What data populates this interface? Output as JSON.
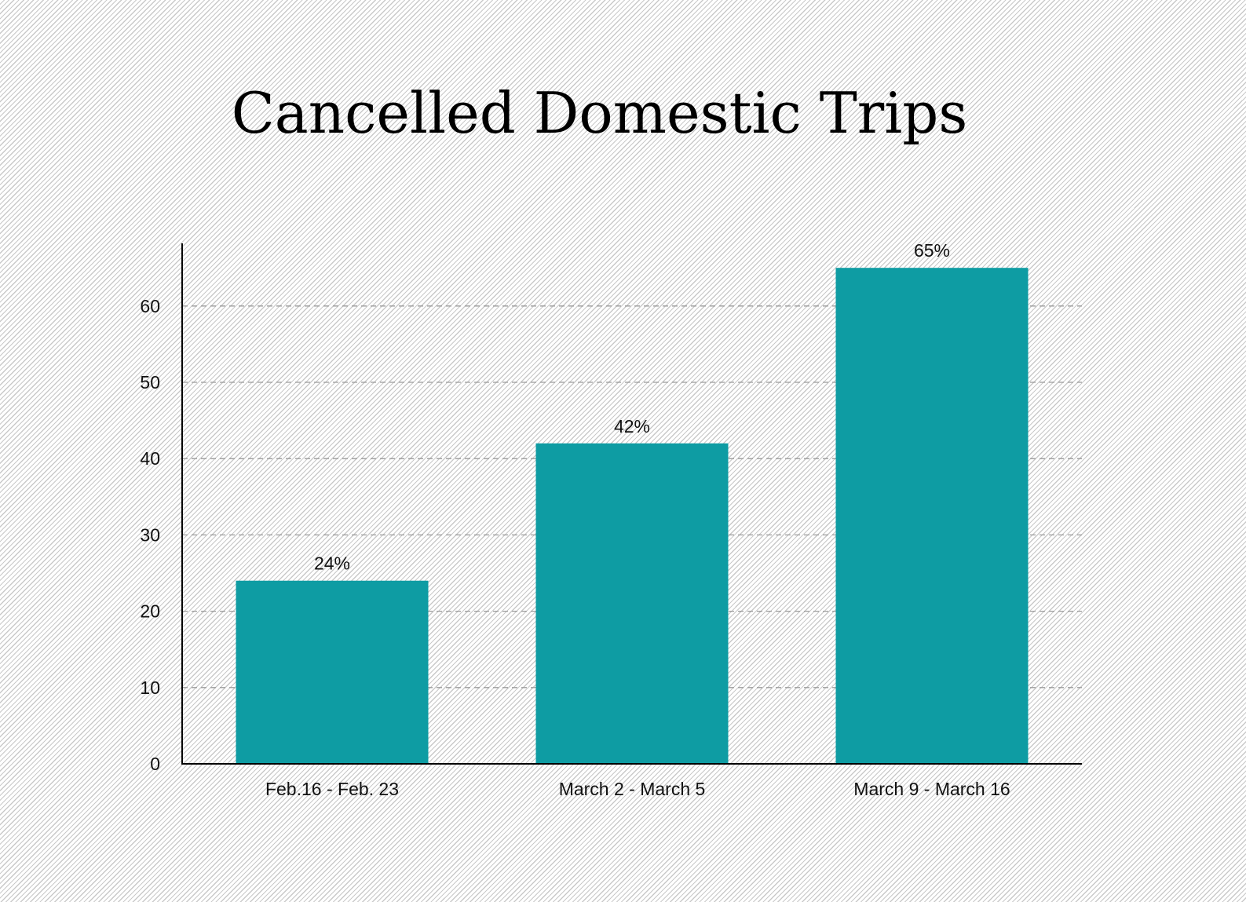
{
  "chart_data": {
    "type": "bar",
    "title": "Cancelled Domestic Trips",
    "xlabel": "",
    "ylabel": "",
    "categories": [
      "Feb.16 - Feb. 23",
      "March 2 - March 5",
      "March 9 - March 16"
    ],
    "values": [
      24,
      42,
      65
    ],
    "data_labels": [
      "24%",
      "42%",
      "65%"
    ],
    "ylim": [
      0,
      68
    ],
    "yticks": [
      0,
      10,
      20,
      30,
      40,
      50,
      60
    ],
    "grid": "horizontal dashed",
    "legend": "none",
    "colors": {
      "bar": "#0e9ca3",
      "grid": "#9a9a9a",
      "axis": "#000000"
    }
  }
}
